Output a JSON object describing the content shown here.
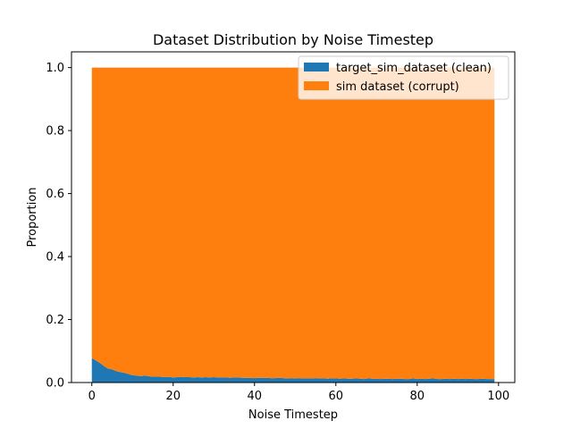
{
  "chart_data": {
    "type": "area",
    "stacked": true,
    "title": "Dataset Distribution by Noise Timestep",
    "xlabel": "Noise Timestep",
    "ylabel": "Proportion",
    "xlim": [
      -5,
      104
    ],
    "ylim": [
      0,
      1.05
    ],
    "x_ticks": [
      0,
      20,
      40,
      60,
      80,
      100
    ],
    "y_ticks": [
      0.0,
      0.2,
      0.4,
      0.6,
      0.8,
      1.0
    ],
    "x_tick_labels": [
      "0",
      "20",
      "40",
      "60",
      "80",
      "100"
    ],
    "y_tick_labels": [
      "0.0",
      "0.2",
      "0.4",
      "0.6",
      "0.8",
      "1.0"
    ],
    "grid": false,
    "legend_position": "upper-right",
    "x": [
      0,
      1,
      2,
      3,
      4,
      5,
      6,
      7,
      8,
      9,
      10,
      11,
      12,
      13,
      14,
      15,
      16,
      17,
      18,
      19,
      20,
      21,
      22,
      23,
      24,
      25,
      26,
      27,
      28,
      29,
      30,
      31,
      32,
      33,
      34,
      35,
      36,
      37,
      38,
      39,
      40,
      41,
      42,
      43,
      44,
      45,
      46,
      47,
      48,
      49,
      50,
      51,
      52,
      53,
      54,
      55,
      56,
      57,
      58,
      59,
      60,
      61,
      62,
      63,
      64,
      65,
      66,
      67,
      68,
      69,
      70,
      71,
      72,
      73,
      74,
      75,
      76,
      77,
      78,
      79,
      80,
      81,
      82,
      83,
      84,
      85,
      86,
      87,
      88,
      89,
      90,
      91,
      92,
      93,
      94,
      95,
      96,
      97,
      98,
      99
    ],
    "series": [
      {
        "name": "target_sim_dataset (clean)",
        "color": "#1f77b4",
        "values": [
          0.078,
          0.07,
          0.062,
          0.052,
          0.044,
          0.042,
          0.036,
          0.033,
          0.031,
          0.027,
          0.023,
          0.022,
          0.02,
          0.022,
          0.02,
          0.018,
          0.019,
          0.018,
          0.017,
          0.018,
          0.016,
          0.017,
          0.018,
          0.017,
          0.017,
          0.016,
          0.017,
          0.016,
          0.017,
          0.016,
          0.017,
          0.016,
          0.016,
          0.016,
          0.015,
          0.016,
          0.016,
          0.015,
          0.015,
          0.015,
          0.014,
          0.015,
          0.015,
          0.015,
          0.014,
          0.014,
          0.015,
          0.014,
          0.013,
          0.014,
          0.013,
          0.014,
          0.013,
          0.013,
          0.013,
          0.014,
          0.013,
          0.013,
          0.012,
          0.013,
          0.013,
          0.012,
          0.013,
          0.012,
          0.012,
          0.013,
          0.012,
          0.011,
          0.013,
          0.012,
          0.012,
          0.011,
          0.012,
          0.012,
          0.011,
          0.012,
          0.012,
          0.011,
          0.011,
          0.013,
          0.011,
          0.012,
          0.011,
          0.012,
          0.013,
          0.011,
          0.011,
          0.012,
          0.011,
          0.012,
          0.011,
          0.012,
          0.011,
          0.012,
          0.011,
          0.011,
          0.012,
          0.011,
          0.011,
          0.011
        ]
      },
      {
        "name": "sim dataset (corrupt)",
        "color": "#ff7f0e",
        "values": [
          0.922,
          0.93,
          0.938,
          0.948,
          0.956,
          0.958,
          0.964,
          0.967,
          0.969,
          0.973,
          0.977,
          0.978,
          0.98,
          0.978,
          0.98,
          0.982,
          0.981,
          0.982,
          0.983,
          0.982,
          0.984,
          0.983,
          0.982,
          0.983,
          0.983,
          0.984,
          0.983,
          0.984,
          0.983,
          0.984,
          0.983,
          0.984,
          0.984,
          0.984,
          0.985,
          0.984,
          0.984,
          0.985,
          0.985,
          0.985,
          0.986,
          0.985,
          0.985,
          0.985,
          0.986,
          0.986,
          0.985,
          0.986,
          0.987,
          0.986,
          0.987,
          0.986,
          0.987,
          0.987,
          0.987,
          0.986,
          0.987,
          0.987,
          0.988,
          0.987,
          0.987,
          0.988,
          0.987,
          0.988,
          0.988,
          0.987,
          0.988,
          0.989,
          0.987,
          0.988,
          0.988,
          0.989,
          0.988,
          0.988,
          0.989,
          0.988,
          0.988,
          0.989,
          0.989,
          0.987,
          0.989,
          0.988,
          0.989,
          0.988,
          0.987,
          0.989,
          0.989,
          0.988,
          0.989,
          0.988,
          0.989,
          0.988,
          0.989,
          0.988,
          0.989,
          0.989,
          0.988,
          0.989,
          0.989,
          0.989
        ]
      }
    ]
  }
}
